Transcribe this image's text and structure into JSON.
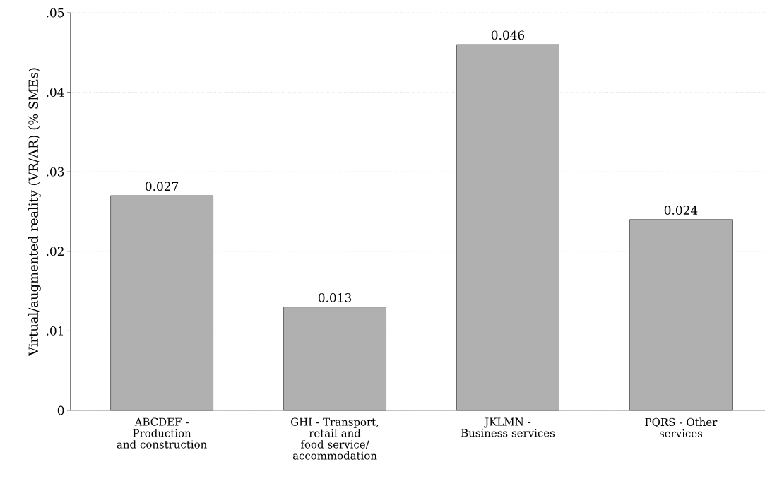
{
  "chart_data": {
    "type": "bar",
    "ylabel": "Virtual/augmented reality (VR/AR) (% SMEs)",
    "categories": [
      "ABCDEF - Production and construction",
      "GHI - Transport, retail and food service/ accommodation",
      "JKLMN - Business services",
      "PQRS - Other services"
    ],
    "values": [
      0.027,
      0.013,
      0.046,
      0.024
    ],
    "color": "#b0b0b0",
    "data_labels": true,
    "ylim": [
      0,
      0.05
    ],
    "yticks": [
      0,
      {
        "value": 0.01,
        "label": ".01"
      },
      {
        "value": 0.02,
        "label": ".02"
      },
      {
        "value": 0.03,
        "label": ".03"
      },
      {
        "value": 0.04,
        "label": ".04"
      },
      {
        "value": 0.05,
        "label": ".05"
      }
    ],
    "grid": "y"
  }
}
